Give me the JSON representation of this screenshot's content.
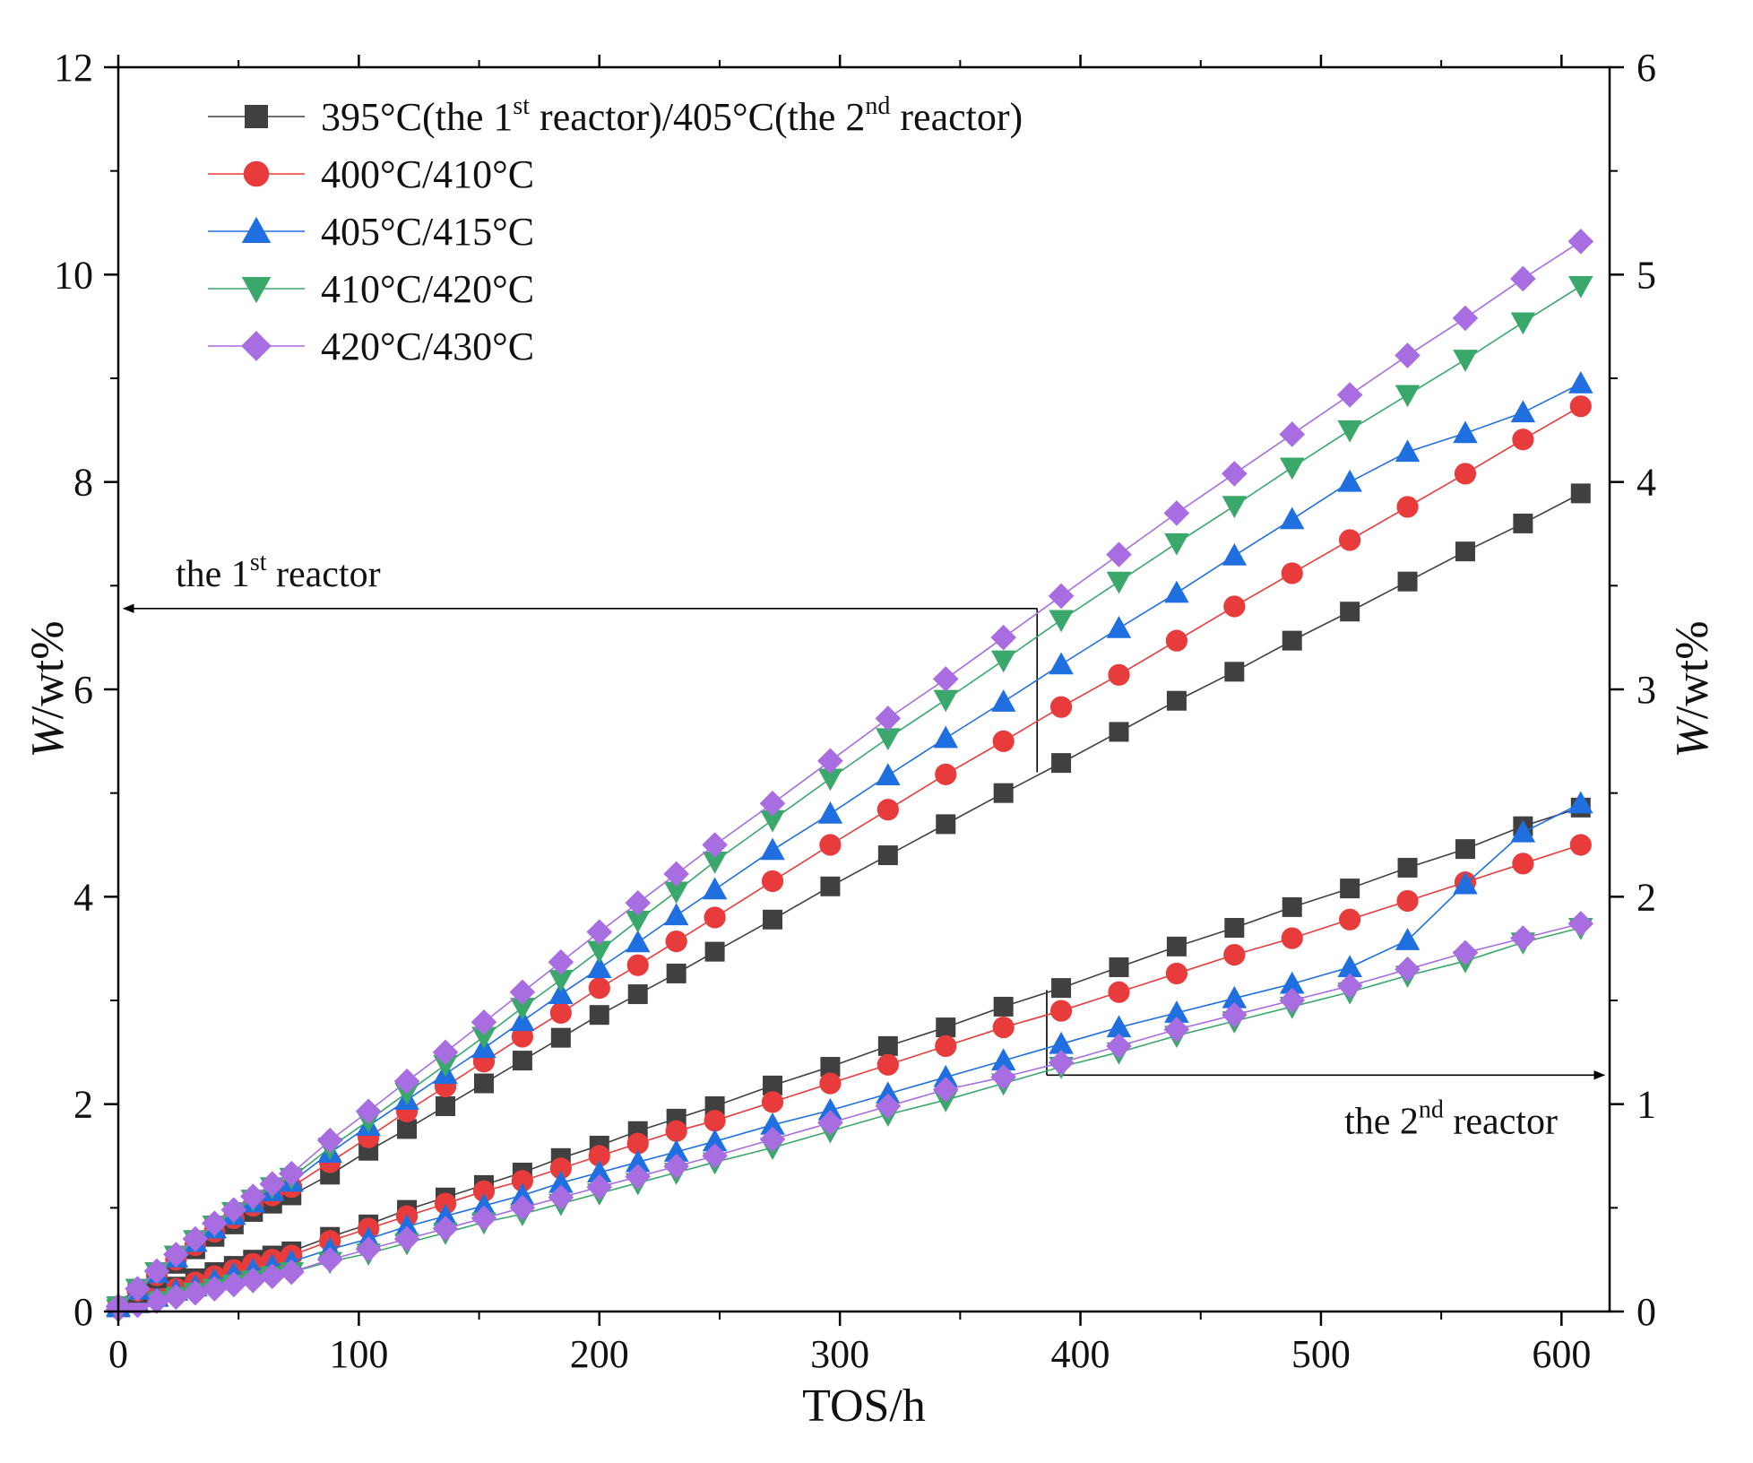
{
  "chart_data": {
    "type": "line",
    "xlabel": "TOS/h",
    "ylabel_left": {
      "italic": "W",
      "rest": "/wt%"
    },
    "ylabel_right": {
      "italic": "W",
      "rest": "/wt%"
    },
    "xlim": [
      0,
      620
    ],
    "ylim_left": [
      0,
      12
    ],
    "ylim_right": [
      0,
      6
    ],
    "x_ticks": [
      0,
      100,
      200,
      300,
      400,
      500,
      600
    ],
    "y_left_ticks": [
      0,
      2,
      4,
      6,
      8,
      10,
      12
    ],
    "y_right_ticks": [
      0,
      1,
      2,
      3,
      4,
      5,
      6
    ],
    "grid": false,
    "legend_position": "top-left",
    "legend": [
      {
        "series": 0,
        "parts": [
          {
            "t": "395°C(the 1",
            "s": ""
          },
          {
            "t": "st",
            "s": "sup"
          },
          {
            "t": " reactor)/405°C(the 2",
            "s": ""
          },
          {
            "t": "nd",
            "s": "sup"
          },
          {
            "t": " reactor)",
            "s": ""
          }
        ]
      },
      {
        "series": 1,
        "parts": [
          {
            "t": "400°C/410°C",
            "s": ""
          }
        ]
      },
      {
        "series": 2,
        "parts": [
          {
            "t": "405°C/415°C",
            "s": ""
          }
        ]
      },
      {
        "series": 3,
        "parts": [
          {
            "t": "410°C/420°C",
            "s": ""
          }
        ]
      },
      {
        "series": 4,
        "parts": [
          {
            "t": "420°C/430°C",
            "s": ""
          }
        ]
      }
    ],
    "annotations": [
      {
        "id": "first",
        "axis": "left",
        "parts": [
          {
            "t": "the 1",
            "s": ""
          },
          {
            "t": "st",
            "s": "sup"
          },
          {
            "t": " reactor",
            "s": ""
          }
        ]
      },
      {
        "id": "second",
        "axis": "right",
        "parts": [
          {
            "t": "the 2",
            "s": ""
          },
          {
            "t": "nd",
            "s": "sup"
          },
          {
            "t": " reactor",
            "s": ""
          }
        ]
      }
    ],
    "series": [
      {
        "name": "395°C/405°C",
        "color": "#404040",
        "marker": "square",
        "first_reactor": {
          "x": [
            0,
            8,
            16,
            24,
            32,
            40,
            48,
            56,
            64,
            72,
            88,
            104,
            120,
            136,
            152,
            168,
            184,
            200,
            216,
            232,
            248,
            272,
            296,
            320,
            344,
            368,
            392,
            416,
            440,
            464,
            488,
            512,
            536,
            560,
            584,
            608
          ],
          "y": [
            0.05,
            0.18,
            0.32,
            0.46,
            0.6,
            0.72,
            0.84,
            0.96,
            1.04,
            1.12,
            1.32,
            1.55,
            1.76,
            1.98,
            2.2,
            2.42,
            2.64,
            2.86,
            3.06,
            3.26,
            3.47,
            3.78,
            4.1,
            4.4,
            4.7,
            5.0,
            5.29,
            5.59,
            5.89,
            6.17,
            6.47,
            6.75,
            7.04,
            7.33,
            7.6,
            7.89
          ]
        },
        "second_reactor": {
          "x": [
            0,
            8,
            16,
            24,
            32,
            40,
            48,
            56,
            64,
            72,
            88,
            104,
            120,
            136,
            152,
            168,
            184,
            200,
            216,
            232,
            248,
            272,
            296,
            320,
            344,
            368,
            392,
            416,
            440,
            464,
            488,
            512,
            536,
            560,
            584,
            608
          ],
          "y": [
            0.02,
            0.06,
            0.09,
            0.12,
            0.16,
            0.19,
            0.22,
            0.25,
            0.27,
            0.29,
            0.36,
            0.42,
            0.49,
            0.55,
            0.61,
            0.67,
            0.74,
            0.8,
            0.87,
            0.93,
            0.99,
            1.09,
            1.18,
            1.28,
            1.37,
            1.47,
            1.56,
            1.66,
            1.76,
            1.85,
            1.95,
            2.04,
            2.14,
            2.23,
            2.34,
            2.43
          ]
        }
      },
      {
        "name": "400°C/410°C",
        "color": "#e83c3c",
        "marker": "circle",
        "first_reactor": {
          "x": [
            0,
            8,
            16,
            24,
            32,
            40,
            48,
            56,
            64,
            72,
            88,
            104,
            120,
            136,
            152,
            168,
            184,
            200,
            216,
            232,
            248,
            272,
            296,
            320,
            344,
            368,
            392,
            416,
            440,
            464,
            488,
            512,
            536,
            560,
            584,
            608
          ],
          "y": [
            0.05,
            0.2,
            0.35,
            0.5,
            0.64,
            0.77,
            0.9,
            1.02,
            1.12,
            1.2,
            1.44,
            1.68,
            1.93,
            2.17,
            2.41,
            2.65,
            2.88,
            3.12,
            3.34,
            3.57,
            3.8,
            4.15,
            4.5,
            4.84,
            5.18,
            5.5,
            5.83,
            6.14,
            6.47,
            6.8,
            7.12,
            7.44,
            7.76,
            8.08,
            8.41,
            8.73
          ]
        },
        "second_reactor": {
          "x": [
            0,
            8,
            16,
            24,
            32,
            40,
            48,
            56,
            64,
            72,
            88,
            104,
            120,
            136,
            152,
            168,
            184,
            200,
            216,
            232,
            248,
            272,
            296,
            320,
            344,
            368,
            392,
            416,
            440,
            464,
            488,
            512,
            536,
            560,
            584,
            608
          ],
          "y": [
            0.02,
            0.05,
            0.08,
            0.11,
            0.14,
            0.17,
            0.2,
            0.23,
            0.25,
            0.27,
            0.34,
            0.4,
            0.46,
            0.52,
            0.58,
            0.63,
            0.69,
            0.75,
            0.81,
            0.87,
            0.92,
            1.01,
            1.1,
            1.19,
            1.28,
            1.37,
            1.45,
            1.54,
            1.63,
            1.72,
            1.8,
            1.89,
            1.98,
            2.07,
            2.16,
            2.25
          ]
        }
      },
      {
        "name": "405°C/415°C",
        "color": "#1f6fe0",
        "marker": "triangle-up",
        "first_reactor": {
          "x": [
            0,
            8,
            16,
            24,
            32,
            40,
            48,
            56,
            64,
            72,
            88,
            104,
            120,
            136,
            152,
            168,
            184,
            200,
            216,
            232,
            248,
            272,
            296,
            320,
            344,
            368,
            392,
            416,
            440,
            464,
            488,
            512,
            536,
            560,
            584,
            608
          ],
          "y": [
            0.05,
            0.21,
            0.37,
            0.52,
            0.67,
            0.8,
            0.93,
            1.05,
            1.16,
            1.25,
            1.53,
            1.79,
            2.04,
            2.29,
            2.54,
            2.8,
            3.06,
            3.31,
            3.56,
            3.82,
            4.07,
            4.45,
            4.8,
            5.17,
            5.53,
            5.88,
            6.24,
            6.59,
            6.93,
            7.29,
            7.64,
            8.0,
            8.29,
            8.47,
            8.67,
            8.95
          ]
        },
        "second_reactor": {
          "x": [
            0,
            8,
            16,
            24,
            32,
            40,
            48,
            56,
            64,
            72,
            88,
            104,
            120,
            136,
            152,
            168,
            184,
            200,
            216,
            232,
            248,
            272,
            296,
            320,
            344,
            368,
            392,
            416,
            440,
            464,
            488,
            512,
            536,
            560,
            584,
            608
          ],
          "y": [
            0.02,
            0.04,
            0.07,
            0.1,
            0.12,
            0.15,
            0.18,
            0.2,
            0.22,
            0.24,
            0.3,
            0.35,
            0.41,
            0.46,
            0.51,
            0.56,
            0.62,
            0.67,
            0.72,
            0.77,
            0.82,
            0.9,
            0.97,
            1.05,
            1.13,
            1.21,
            1.29,
            1.37,
            1.44,
            1.51,
            1.58,
            1.66,
            1.79,
            2.06,
            2.31,
            2.45
          ]
        }
      },
      {
        "name": "410°C/420°C",
        "color": "#3aa86b",
        "marker": "triangle-down",
        "first_reactor": {
          "x": [
            0,
            8,
            16,
            24,
            32,
            40,
            48,
            56,
            64,
            72,
            88,
            104,
            120,
            136,
            152,
            168,
            184,
            200,
            216,
            232,
            248,
            272,
            296,
            320,
            344,
            368,
            392,
            416,
            440,
            464,
            488,
            512,
            536,
            560,
            584,
            608
          ],
          "y": [
            0.05,
            0.22,
            0.38,
            0.54,
            0.69,
            0.83,
            0.96,
            1.08,
            1.2,
            1.29,
            1.58,
            1.84,
            2.11,
            2.38,
            2.65,
            2.93,
            3.2,
            3.48,
            3.77,
            4.05,
            4.34,
            4.74,
            5.14,
            5.53,
            5.9,
            6.28,
            6.67,
            7.04,
            7.41,
            7.77,
            8.14,
            8.5,
            8.84,
            9.18,
            9.54,
            9.89
          ]
        },
        "second_reactor": {
          "x": [
            0,
            8,
            16,
            24,
            32,
            40,
            48,
            56,
            64,
            72,
            88,
            104,
            120,
            136,
            152,
            168,
            184,
            200,
            216,
            232,
            248,
            272,
            296,
            320,
            344,
            368,
            392,
            416,
            440,
            464,
            488,
            512,
            536,
            560,
            584,
            608
          ],
          "y": [
            0.01,
            0.03,
            0.05,
            0.07,
            0.09,
            0.11,
            0.13,
            0.15,
            0.17,
            0.19,
            0.24,
            0.28,
            0.33,
            0.38,
            0.43,
            0.47,
            0.52,
            0.57,
            0.62,
            0.67,
            0.72,
            0.79,
            0.87,
            0.95,
            1.02,
            1.1,
            1.18,
            1.25,
            1.33,
            1.4,
            1.47,
            1.54,
            1.62,
            1.69,
            1.78,
            1.85
          ]
        }
      },
      {
        "name": "420°C/430°C",
        "color": "#a86de0",
        "marker": "diamond",
        "first_reactor": {
          "x": [
            0,
            8,
            16,
            24,
            32,
            40,
            48,
            56,
            64,
            72,
            88,
            104,
            120,
            136,
            152,
            168,
            184,
            200,
            216,
            232,
            248,
            272,
            296,
            320,
            344,
            368,
            392,
            416,
            440,
            464,
            488,
            512,
            536,
            560,
            584,
            608
          ],
          "y": [
            0.05,
            0.22,
            0.39,
            0.55,
            0.7,
            0.85,
            0.98,
            1.11,
            1.23,
            1.33,
            1.65,
            1.93,
            2.22,
            2.5,
            2.79,
            3.08,
            3.37,
            3.66,
            3.94,
            4.22,
            4.5,
            4.9,
            5.31,
            5.72,
            6.1,
            6.5,
            6.9,
            7.3,
            7.7,
            8.08,
            8.46,
            8.84,
            9.22,
            9.58,
            9.96,
            10.32
          ]
        },
        "second_reactor": {
          "x": [
            0,
            8,
            16,
            24,
            32,
            40,
            48,
            56,
            64,
            72,
            88,
            104,
            120,
            136,
            152,
            168,
            184,
            200,
            216,
            232,
            248,
            272,
            296,
            320,
            344,
            368,
            392,
            416,
            440,
            464,
            488,
            512,
            536,
            560,
            584,
            608
          ],
          "y": [
            0.01,
            0.03,
            0.05,
            0.07,
            0.09,
            0.11,
            0.13,
            0.15,
            0.17,
            0.19,
            0.25,
            0.3,
            0.35,
            0.4,
            0.45,
            0.5,
            0.55,
            0.6,
            0.65,
            0.7,
            0.75,
            0.83,
            0.91,
            0.99,
            1.07,
            1.13,
            1.2,
            1.28,
            1.36,
            1.43,
            1.5,
            1.57,
            1.65,
            1.73,
            1.8,
            1.87
          ]
        }
      }
    ]
  }
}
